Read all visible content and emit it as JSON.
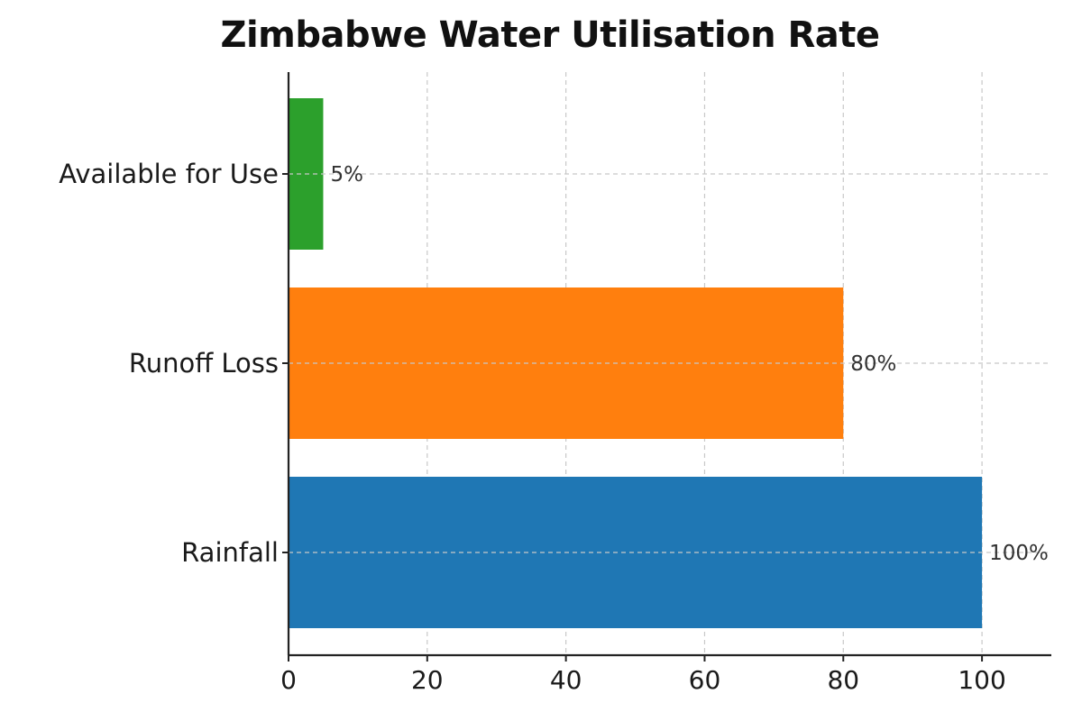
{
  "chart_data": {
    "type": "bar",
    "orientation": "horizontal",
    "title": "Zimbabwe Water Utilisation Rate",
    "xlabel": "",
    "ylabel": "",
    "categories": [
      "Rainfall",
      "Runoff Loss",
      "Available for Use"
    ],
    "values": [
      100,
      80,
      5
    ],
    "data_labels": [
      "100%",
      "80%",
      "5%"
    ],
    "colors": [
      "#1f77b4",
      "#ff7f0e",
      "#2ca02c"
    ],
    "xlim": [
      0,
      110
    ],
    "xticks": [
      0,
      20,
      40,
      60,
      80,
      100
    ],
    "xtick_labels": [
      "0",
      "20",
      "40",
      "60",
      "80",
      "100"
    ],
    "grid": true
  }
}
